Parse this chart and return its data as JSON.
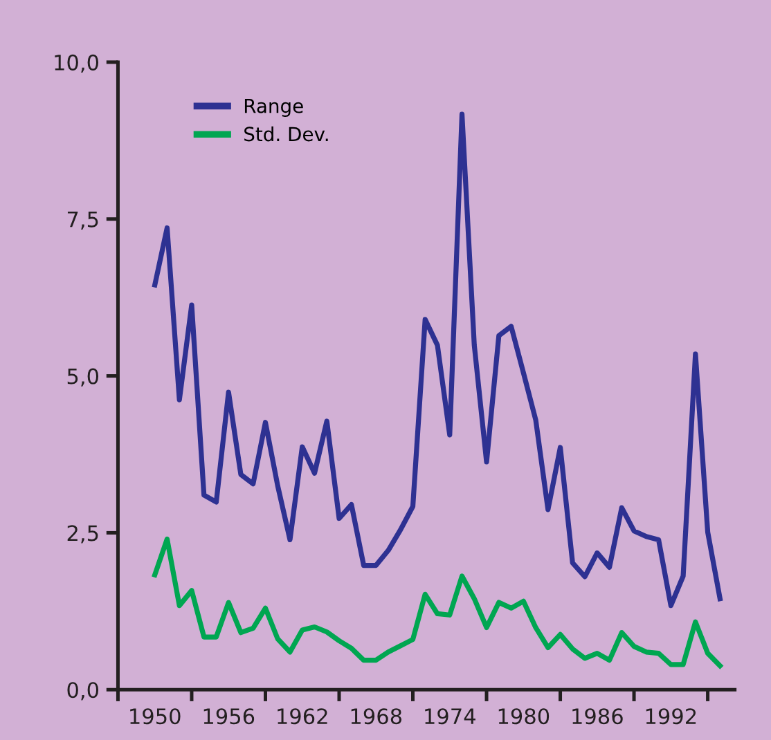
{
  "chart_data": {
    "type": "line",
    "x": [
      1950,
      1951,
      1952,
      1953,
      1954,
      1955,
      1956,
      1957,
      1958,
      1959,
      1960,
      1961,
      1962,
      1963,
      1964,
      1965,
      1966,
      1967,
      1968,
      1969,
      1970,
      1971,
      1972,
      1973,
      1974,
      1975,
      1976,
      1977,
      1978,
      1979,
      1980,
      1981,
      1982,
      1983,
      1984,
      1985,
      1986,
      1987,
      1988,
      1989,
      1990,
      1991,
      1992,
      1993,
      1994,
      1995,
      1996
    ],
    "series": [
      {
        "name": "Range",
        "color": "#2e3192",
        "values": [
          6.45,
          7.36,
          4.62,
          6.13,
          3.1,
          2.99,
          4.74,
          3.43,
          3.28,
          4.26,
          3.25,
          2.39,
          3.87,
          3.45,
          4.28,
          2.73,
          2.95,
          1.98,
          1.98,
          2.22,
          2.55,
          2.92,
          5.9,
          5.49,
          4.06,
          9.17,
          5.49,
          3.63,
          5.64,
          5.79,
          5.05,
          4.3,
          2.87,
          3.86,
          2.02,
          1.8,
          2.18,
          1.95,
          2.9,
          2.53,
          2.44,
          2.39,
          1.34,
          1.81,
          5.35,
          2.51,
          1.45
        ]
      },
      {
        "name": "Std. Dev.",
        "color": "#00a651",
        "values": [
          1.83,
          2.4,
          1.34,
          1.58,
          0.84,
          0.84,
          1.39,
          0.91,
          0.98,
          1.3,
          0.81,
          0.6,
          0.95,
          1.0,
          0.92,
          0.78,
          0.66,
          0.47,
          0.47,
          0.6,
          0.7,
          0.8,
          1.52,
          1.21,
          1.19,
          1.81,
          1.45,
          0.99,
          1.39,
          1.3,
          1.41,
          0.99,
          0.67,
          0.88,
          0.65,
          0.5,
          0.58,
          0.47,
          0.91,
          0.69,
          0.6,
          0.58,
          0.4,
          0.4,
          1.08,
          0.58,
          0.38
        ]
      }
    ],
    "xlim": [
      1947,
      1997.2
    ],
    "xticks": [
      {
        "value": 1947,
        "label": null
      },
      {
        "value": 1950,
        "label": "1950"
      },
      {
        "value": 1953,
        "label": null
      },
      {
        "value": 1956,
        "label": "1956"
      },
      {
        "value": 1959,
        "label": null
      },
      {
        "value": 1962,
        "label": "1962"
      },
      {
        "value": 1965,
        "label": null
      },
      {
        "value": 1968,
        "label": "1968"
      },
      {
        "value": 1971,
        "label": null
      },
      {
        "value": 1974,
        "label": "1974"
      },
      {
        "value": 1977,
        "label": null
      },
      {
        "value": 1980,
        "label": "1980"
      },
      {
        "value": 1983,
        "label": null
      },
      {
        "value": 1986,
        "label": "1986"
      },
      {
        "value": 1989,
        "label": null
      },
      {
        "value": 1992,
        "label": "1992"
      },
      {
        "value": 1995,
        "label": null
      }
    ],
    "ylim": [
      0,
      10
    ],
    "yticks": [
      {
        "value": 0,
        "label": "0,0"
      },
      {
        "value": 2.5,
        "label": "2,5"
      },
      {
        "value": 5,
        "label": "5,0"
      },
      {
        "value": 7.5,
        "label": "7,5"
      },
      {
        "value": 10,
        "label": "10,0"
      }
    ],
    "grid": false,
    "legend": "top left",
    "marker": "none",
    "line_style": "solid"
  }
}
